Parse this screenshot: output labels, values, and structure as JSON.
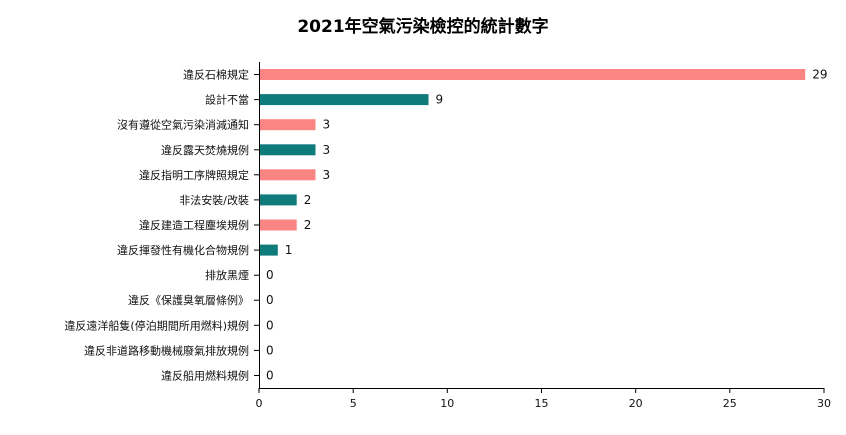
{
  "chart_data": {
    "type": "bar",
    "orientation": "horizontal",
    "title": "2021年空氣污染檢控的統計數字",
    "categories": [
      "違反石棉規定",
      "設計不當",
      "沒有遵從空氣污染消減通知",
      "違反露天焚燒規例",
      "違反指明工序牌照規定",
      "非法安裝/改裝",
      "違反建造工程塵埃規例",
      "違反揮發性有機化合物規例",
      "排放黑煙",
      "違反《保護臭氧層條例》",
      "違反遠洋船隻(停泊期間所用燃料)規例",
      "違反非道路移動機械廢氣排放規例",
      "違反船用燃料規例"
    ],
    "values": [
      29,
      9,
      3,
      3,
      3,
      2,
      2,
      1,
      0,
      0,
      0,
      0,
      0
    ],
    "bar_colors": [
      "#fa8583",
      "#0f7b7b",
      "#fa8583",
      "#0f7b7b",
      "#fa8583",
      "#0f7b7b",
      "#fa8583",
      "#0f7b7b",
      "#fa8583",
      "#0f7b7b",
      "#fa8583",
      "#0f7b7b",
      "#fa8583"
    ],
    "xlim": [
      0,
      30
    ],
    "xticks": [
      0,
      5,
      10,
      15,
      20,
      25,
      30
    ],
    "grid": false,
    "legend": "none"
  }
}
